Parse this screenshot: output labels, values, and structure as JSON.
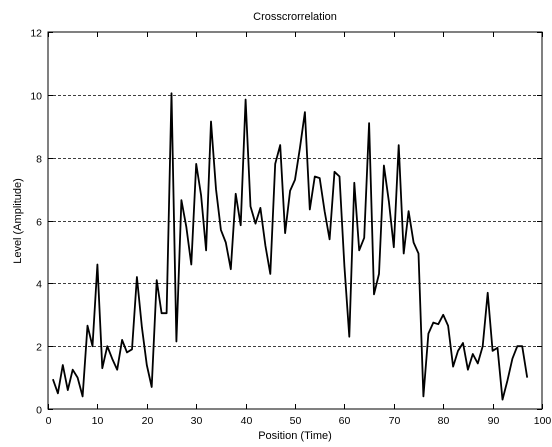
{
  "chart_data": {
    "type": "line",
    "title": "Crosscrorrelation",
    "xlabel": "Position (Time)",
    "ylabel": "Level (Amplitude)",
    "xlim": [
      0,
      100
    ],
    "ylim": [
      0,
      12
    ],
    "xticks": [
      0,
      10,
      20,
      30,
      40,
      50,
      60,
      70,
      80,
      90,
      100
    ],
    "yticks": [
      0,
      2,
      4,
      6,
      8,
      10,
      12
    ],
    "xtick_labels": [
      "0",
      "10",
      "20",
      "30",
      "40",
      "50",
      "60",
      "70",
      "80",
      "90",
      "100"
    ],
    "ytick_labels": [
      "0",
      "2",
      "4",
      "6",
      "8",
      "10",
      "12"
    ],
    "grid": "horizontal-dashed",
    "line_color": "#000000",
    "series": [
      {
        "x": [
          1,
          2,
          3,
          4,
          5,
          6,
          7,
          8,
          9,
          10,
          11,
          12,
          13,
          14,
          15,
          16,
          17,
          18,
          19,
          20,
          21,
          22,
          23,
          24,
          25,
          26,
          27,
          28,
          29,
          30,
          31,
          32,
          33,
          34,
          35,
          36,
          37,
          38,
          39,
          40,
          41,
          42,
          43,
          44,
          45,
          46,
          47,
          48,
          49,
          50,
          51,
          52,
          53,
          54,
          55,
          56,
          57,
          58,
          59,
          60,
          61,
          62,
          63,
          64,
          65,
          66,
          67,
          68,
          69,
          70,
          71,
          72,
          73,
          74,
          75,
          76,
          77,
          78,
          79,
          80,
          81,
          82,
          83,
          84,
          85,
          86,
          87,
          88,
          89,
          90,
          91,
          92,
          93,
          94,
          95,
          96,
          97
        ],
        "y": [
          0.95,
          0.5,
          1.4,
          0.6,
          1.25,
          1.0,
          0.4,
          2.65,
          2.0,
          4.6,
          1.3,
          2.0,
          1.6,
          1.25,
          2.2,
          1.8,
          1.9,
          4.2,
          2.6,
          1.4,
          0.7,
          4.1,
          3.05,
          3.05,
          10.05,
          2.15,
          6.65,
          5.8,
          4.6,
          7.8,
          6.8,
          5.05,
          9.15,
          7.0,
          5.7,
          5.3,
          4.45,
          6.85,
          5.85,
          9.85,
          6.45,
          5.9,
          6.4,
          5.2,
          4.3,
          7.8,
          8.4,
          5.6,
          6.95,
          7.3,
          8.3,
          9.45,
          6.35,
          7.4,
          7.35,
          6.3,
          5.4,
          7.55,
          7.4,
          4.55,
          2.3,
          7.2,
          5.05,
          5.45,
          9.1,
          3.65,
          4.3,
          7.75,
          6.6,
          5.15,
          8.4,
          4.95,
          6.3,
          5.3,
          4.95,
          0.4,
          2.4,
          2.75,
          2.7,
          3.0,
          2.65,
          1.35,
          1.85,
          2.1,
          1.25,
          1.75,
          1.45,
          2.0,
          3.7,
          1.85,
          1.95,
          0.3,
          0.9,
          1.6,
          2.0,
          2.0,
          1.0
        ]
      }
    ]
  }
}
